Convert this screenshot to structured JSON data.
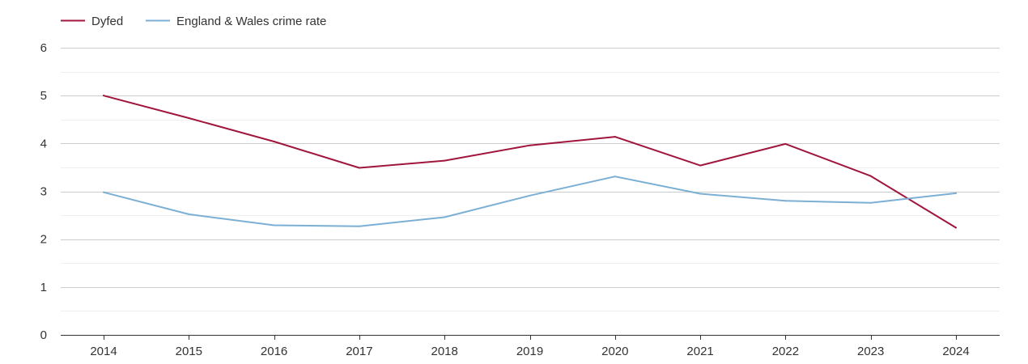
{
  "chart_data": {
    "type": "line",
    "title": "",
    "xlabel": "",
    "ylabel": "",
    "categories": [
      "2014",
      "2015",
      "2016",
      "2017",
      "2018",
      "2019",
      "2020",
      "2021",
      "2022",
      "2023",
      "2024"
    ],
    "ylim": [
      0,
      6
    ],
    "yticks": [
      "0",
      "1",
      "2",
      "3",
      "4",
      "5",
      "6"
    ],
    "grid": true,
    "legend_position": "top-left",
    "series": [
      {
        "name": "Dyfed",
        "color": "#a0163c",
        "values": [
          5.0,
          4.53,
          4.04,
          3.49,
          3.64,
          3.96,
          4.14,
          3.54,
          3.99,
          3.32,
          2.24
        ]
      },
      {
        "name": "England & Wales crime rate",
        "color": "#7bafd4",
        "values": [
          2.98,
          2.52,
          2.29,
          2.27,
          2.46,
          2.91,
          3.31,
          2.95,
          2.8,
          2.76,
          2.96
        ]
      }
    ]
  }
}
